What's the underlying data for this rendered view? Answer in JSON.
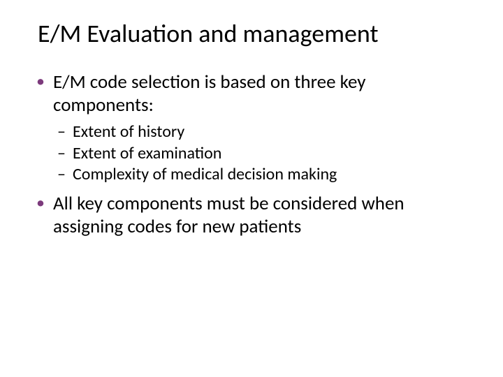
{
  "title": "E/M Evaluation and management",
  "bullets": [
    {
      "text": "E/M code selection is based on three key components:",
      "sub": [
        "Extent of history",
        "Extent of examination",
        "Complexity of medical decision making"
      ]
    },
    {
      "text": "All key components must be considered when assigning codes for new patients",
      "sub": []
    }
  ],
  "colors": {
    "bullet_l1_marker": "#7c3a7c",
    "text": "#000000",
    "background": "#ffffff"
  },
  "fontsize": {
    "title": 36,
    "l1": 27,
    "l2": 24
  }
}
